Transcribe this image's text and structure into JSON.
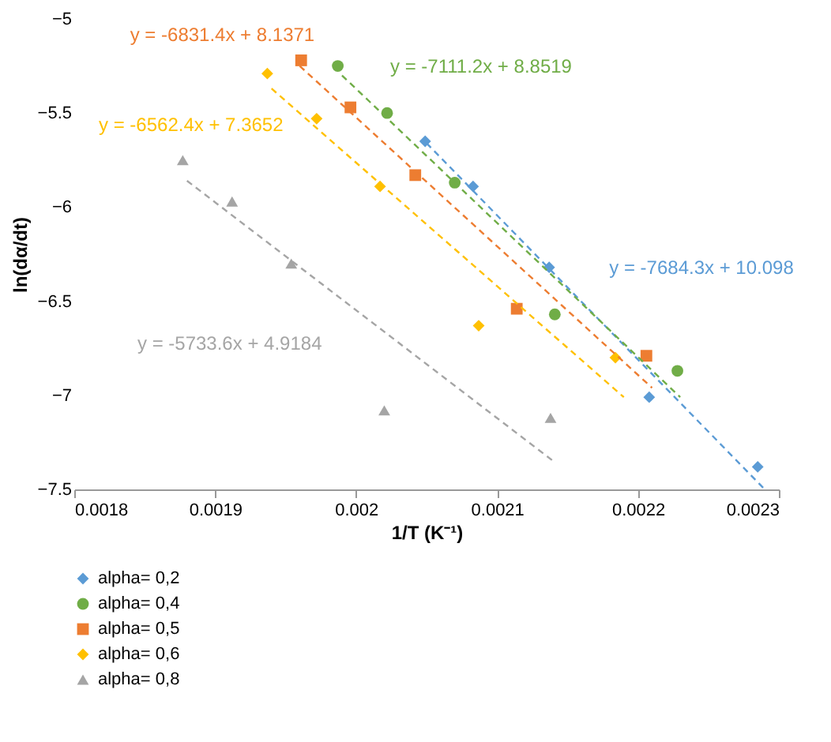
{
  "chart_data": {
    "type": "scatter",
    "xlabel": "1/T (K⁻¹)",
    "ylabel": "ln(dα/dt)",
    "xlim": [
      0.0018,
      0.0023
    ],
    "xticks": [
      0.0018,
      0.0019,
      0.002,
      0.0021,
      0.0022,
      0.0023
    ],
    "ylim": [
      -7.5,
      -5
    ],
    "yticks": [
      -7.5,
      -7,
      -6.5,
      -6,
      -5.5,
      -5
    ],
    "legend": "bottom",
    "series": [
      {
        "name": "alpha= 0,2",
        "color": "#5b9bd5",
        "marker": "diamond",
        "x": [
          0.002049,
          0.002083,
          0.002137,
          0.002208,
          0.002285
        ],
        "values": [
          -5.65,
          -5.89,
          -6.32,
          -7.01,
          -7.38
        ]
      },
      {
        "name": "alpha= 0,4",
        "color": "#70ad47",
        "marker": "circle",
        "x": [
          0.001987,
          0.002022,
          0.00207,
          0.002141,
          0.002228
        ],
        "values": [
          -5.25,
          -5.5,
          -5.87,
          -6.57,
          -6.87
        ]
      },
      {
        "name": "alpha= 0,5",
        "color": "#ed7d31",
        "marker": "square",
        "x": [
          0.001961,
          0.001996,
          0.002042,
          0.002114,
          0.002206
        ],
        "values": [
          -5.22,
          -5.47,
          -5.83,
          -6.54,
          -6.79
        ]
      },
      {
        "name": "alpha= 0,6",
        "color": "#ffc000",
        "marker": "diamond",
        "x": [
          0.001937,
          0.001972,
          0.002017,
          0.002087,
          0.002184
        ],
        "values": [
          -5.29,
          -5.53,
          -5.89,
          -6.63,
          -6.8
        ]
      },
      {
        "name": "alpha= 0,8",
        "color": "#a5a5a5",
        "marker": "triangle",
        "x": [
          0.001877,
          0.001912,
          0.001954,
          0.00202,
          0.002138
        ],
        "values": [
          -5.75,
          -5.97,
          -6.3,
          -7.08,
          -7.12
        ]
      },
      {
        "type": "line",
        "color": "#5b9bd5",
        "line_style": "dashed",
        "x": [
          0.00205,
          0.00229
        ],
        "values": [
          -5.66,
          -7.5
        ]
      },
      {
        "type": "line",
        "color": "#70ad47",
        "line_style": "dashed",
        "x": [
          0.00199,
          0.00223
        ],
        "values": [
          -5.3,
          -7.01
        ]
      },
      {
        "type": "line",
        "color": "#ed7d31",
        "line_style": "dashed",
        "x": [
          0.00196,
          0.00221
        ],
        "values": [
          -5.25,
          -6.96
        ]
      },
      {
        "type": "line",
        "color": "#ffc000",
        "line_style": "dashed",
        "x": [
          0.00194,
          0.00219
        ],
        "values": [
          -5.37,
          -7.01
        ]
      },
      {
        "type": "line",
        "color": "#a5a5a5",
        "line_style": "dashed",
        "x": [
          0.00188,
          0.00214
        ],
        "values": [
          -5.86,
          -7.35
        ]
      }
    ],
    "annotations": [
      "y = -7684.3x + 10.098",
      "y = -7111.2x + 8.8519",
      "y = -6831.4x + 8.1371",
      "y = -6562.4x + 7.3652",
      "y = -5733.6x + 4.9184"
    ]
  }
}
